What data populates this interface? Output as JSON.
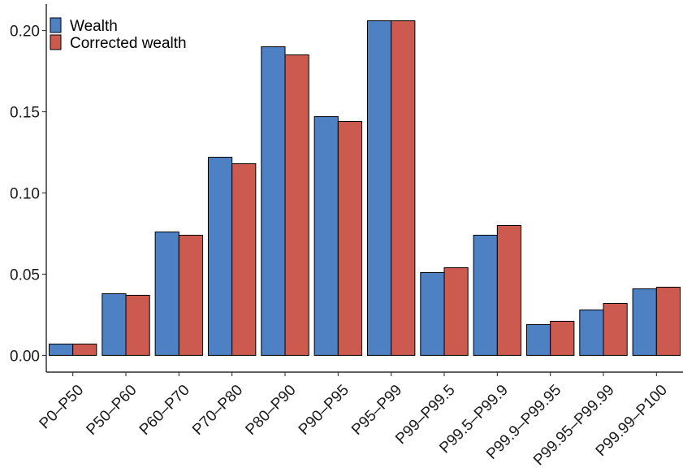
{
  "chart_data": {
    "type": "bar",
    "title": "",
    "xlabel": "",
    "ylabel": "",
    "categories": [
      "P0–P50",
      "P50–P60",
      "P60–P70",
      "P70–P80",
      "P80–P90",
      "P90–P95",
      "P95–P99",
      "P99–P99.5",
      "P99.5–P99.9",
      "P99.9–P99.95",
      "P99.95–P99.99",
      "P99.99–P100"
    ],
    "series": [
      {
        "name": "Wealth",
        "color": "#4e81c3",
        "values": [
          0.007,
          0.038,
          0.076,
          0.122,
          0.19,
          0.147,
          0.206,
          0.051,
          0.074,
          0.019,
          0.028,
          0.041
        ]
      },
      {
        "name": "Corrected wealth",
        "color": "#cd5a4f",
        "values": [
          0.007,
          0.037,
          0.074,
          0.118,
          0.185,
          0.144,
          0.206,
          0.054,
          0.08,
          0.021,
          0.032,
          0.042
        ]
      }
    ],
    "ylim": [
      -0.0103,
      0.2163
    ],
    "yticks": [
      0.0,
      0.05,
      0.1,
      0.15,
      0.2
    ],
    "ytick_labels": [
      "0.00",
      "0.05",
      "0.10",
      "0.15",
      "0.20"
    ],
    "grid": false,
    "legend_position": "top-left"
  }
}
